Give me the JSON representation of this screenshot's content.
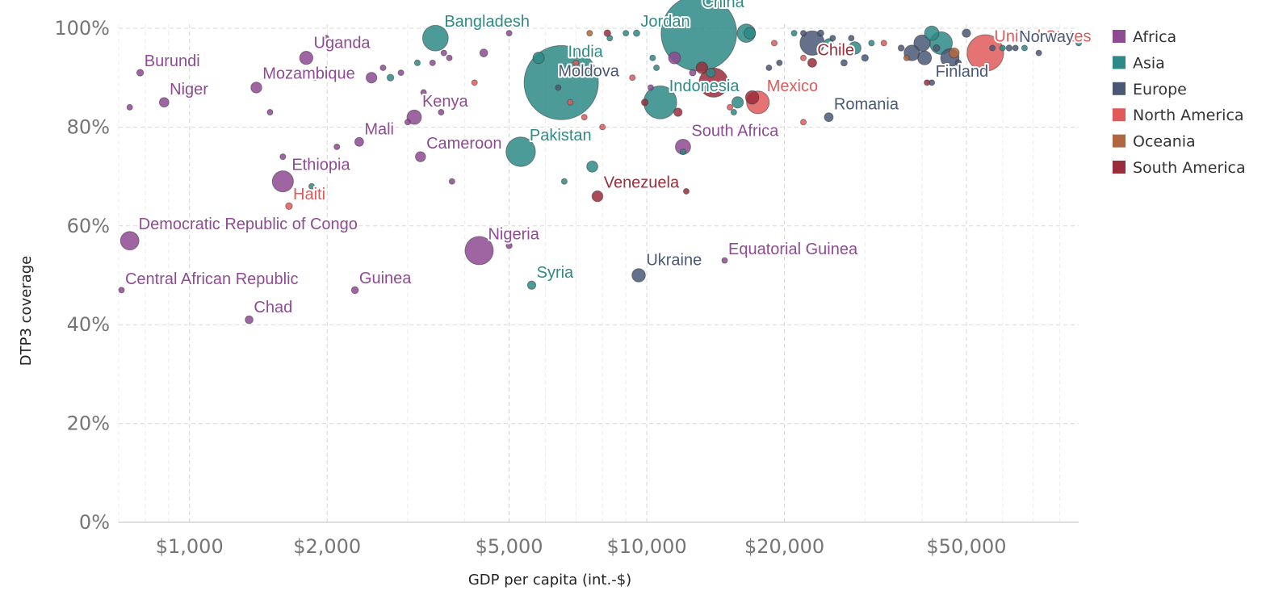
{
  "chart_data": {
    "type": "scatter",
    "xlabel": "GDP per capita (int.-$)",
    "ylabel": "DTP3 coverage",
    "xscale": "log",
    "xlim": [
      700,
      88000
    ],
    "ylim": [
      0,
      100
    ],
    "x_ticks": [
      {
        "value": 1000,
        "label": "$1,000"
      },
      {
        "value": 2000,
        "label": "$2,000"
      },
      {
        "value": 5000,
        "label": "$5,000"
      },
      {
        "value": 10000,
        "label": "$10,000"
      },
      {
        "value": 20000,
        "label": "$20,000"
      },
      {
        "value": 50000,
        "label": "$50,000"
      }
    ],
    "y_ticks": [
      {
        "value": 0,
        "label": "0%"
      },
      {
        "value": 20,
        "label": "20%"
      },
      {
        "value": 40,
        "label": "40%"
      },
      {
        "value": 60,
        "label": "60%"
      },
      {
        "value": 80,
        "label": "80%"
      },
      {
        "value": 100,
        "label": "100%"
      }
    ],
    "legend": [
      {
        "name": "Africa",
        "color": "#8e4a93"
      },
      {
        "name": "Asia",
        "color": "#2d8a86"
      },
      {
        "name": "Europe",
        "color": "#4a5875"
      },
      {
        "name": "North America",
        "color": "#e05a5a"
      },
      {
        "name": "Oceania",
        "color": "#b0663f"
      },
      {
        "name": "South America",
        "color": "#9b2d3a"
      }
    ],
    "labeled_points": [
      {
        "name": "Burundi",
        "region": "Africa",
        "x": 780,
        "y": 91,
        "pop_m": 11
      },
      {
        "name": "Niger",
        "region": "Africa",
        "x": 880,
        "y": 85,
        "pop_m": 22
      },
      {
        "name": "Uganda",
        "region": "Africa",
        "x": 1800,
        "y": 94,
        "pop_m": 43
      },
      {
        "name": "Mozambique",
        "region": "Africa",
        "x": 1400,
        "y": 88,
        "pop_m": 29
      },
      {
        "name": "Kenya",
        "region": "Africa",
        "x": 3100,
        "y": 82,
        "pop_m": 51
      },
      {
        "name": "Mali",
        "region": "Africa",
        "x": 2350,
        "y": 77,
        "pop_m": 19
      },
      {
        "name": "Cameroon",
        "region": "Africa",
        "x": 3200,
        "y": 74,
        "pop_m": 25
      },
      {
        "name": "Ethiopia",
        "region": "Africa",
        "x": 1600,
        "y": 69,
        "pop_m": 109
      },
      {
        "name": "Haiti",
        "region": "North America",
        "x": 1650,
        "y": 64,
        "pop_m": 11
      },
      {
        "name": "Democratic Republic of Congo",
        "region": "Africa",
        "x": 740,
        "y": 57,
        "pop_m": 84
      },
      {
        "name": "Nigeria",
        "region": "Africa",
        "x": 4300,
        "y": 55,
        "pop_m": 196
      },
      {
        "name": "Central African Republic",
        "region": "Africa",
        "x": 710,
        "y": 47,
        "pop_m": 5
      },
      {
        "name": "Guinea",
        "region": "Africa",
        "x": 2300,
        "y": 47,
        "pop_m": 12
      },
      {
        "name": "Chad",
        "region": "Africa",
        "x": 1350,
        "y": 41,
        "pop_m": 15
      },
      {
        "name": "Bangladesh",
        "region": "Asia",
        "x": 3450,
        "y": 98,
        "pop_m": 161
      },
      {
        "name": "India",
        "region": "Asia",
        "x": 6500,
        "y": 89,
        "pop_m": 1353
      },
      {
        "name": "Moldova",
        "region": "Europe",
        "x": 6400,
        "y": 88,
        "pop_m": 4
      },
      {
        "name": "Jordan",
        "region": "Asia",
        "x": 9500,
        "y": 99,
        "pop_m": 10
      },
      {
        "name": "China",
        "region": "Asia",
        "x": 13000,
        "y": 99,
        "pop_m": 1400
      },
      {
        "name": "Pakistan",
        "region": "Asia",
        "x": 5300,
        "y": 75,
        "pop_m": 212
      },
      {
        "name": "Indonesia",
        "region": "Asia",
        "x": 10700,
        "y": 85,
        "pop_m": 267
      },
      {
        "name": "Mexico",
        "region": "North America",
        "x": 17500,
        "y": 85,
        "pop_m": 126
      },
      {
        "name": "South Africa",
        "region": "Africa",
        "x": 12000,
        "y": 76,
        "pop_m": 57
      },
      {
        "name": "Venezuela",
        "region": "South America",
        "x": 7800,
        "y": 66,
        "pop_m": 29
      },
      {
        "name": "Syria",
        "region": "Asia",
        "x": 5600,
        "y": 48,
        "pop_m": 17
      },
      {
        "name": "Ukraine",
        "region": "Europe",
        "x": 9600,
        "y": 50,
        "pop_m": 44
      },
      {
        "name": "Equatorial Guinea",
        "region": "Africa",
        "x": 14800,
        "y": 53,
        "pop_m": 1.3
      },
      {
        "name": "Chile",
        "region": "South America",
        "x": 23000,
        "y": 93,
        "pop_m": 19
      },
      {
        "name": "Romania",
        "region": "Europe",
        "x": 25000,
        "y": 82,
        "pop_m": 19
      },
      {
        "name": "United States",
        "region": "North America",
        "x": 55000,
        "y": 95,
        "pop_m": 327
      },
      {
        "name": "Finland",
        "region": "Europe",
        "x": 42000,
        "y": 89,
        "pop_m": 5.5
      },
      {
        "name": "Norway",
        "region": "Europe",
        "x": 64000,
        "y": 96,
        "pop_m": 5.3
      }
    ],
    "points": [
      {
        "region": "Africa",
        "x": 740,
        "y": 84,
        "pop_m": 3
      },
      {
        "region": "Africa",
        "x": 1030,
        "y": 88,
        "pop_m": 1
      },
      {
        "region": "Africa",
        "x": 1500,
        "y": 83,
        "pop_m": 3
      },
      {
        "region": "Africa",
        "x": 1600,
        "y": 74,
        "pop_m": 7
      },
      {
        "region": "Asia",
        "x": 1850,
        "y": 68,
        "pop_m": 8
      },
      {
        "region": "Africa",
        "x": 1880,
        "y": 90,
        "pop_m": 2
      },
      {
        "region": "Africa",
        "x": 1990,
        "y": 98,
        "pop_m": 2
      },
      {
        "region": "Africa",
        "x": 2100,
        "y": 76,
        "pop_m": 3
      },
      {
        "region": "Africa",
        "x": 2500,
        "y": 90,
        "pop_m": 28
      },
      {
        "region": "Africa",
        "x": 2650,
        "y": 92,
        "pop_m": 2
      },
      {
        "region": "Asia",
        "x": 2750,
        "y": 90,
        "pop_m": 11
      },
      {
        "region": "Africa",
        "x": 2900,
        "y": 91,
        "pop_m": 1
      },
      {
        "region": "Africa",
        "x": 3000,
        "y": 81,
        "pop_m": 1
      },
      {
        "region": "Asia",
        "x": 3150,
        "y": 93,
        "pop_m": 8
      },
      {
        "region": "Africa",
        "x": 3250,
        "y": 87,
        "pop_m": 1
      },
      {
        "region": "Africa",
        "x": 3400,
        "y": 93,
        "pop_m": 3
      },
      {
        "region": "Africa",
        "x": 3550,
        "y": 83,
        "pop_m": 2
      },
      {
        "region": "Africa",
        "x": 3600,
        "y": 95,
        "pop_m": 1
      },
      {
        "region": "Africa",
        "x": 3700,
        "y": 94,
        "pop_m": 7
      },
      {
        "region": "Africa",
        "x": 3750,
        "y": 69,
        "pop_m": 2
      },
      {
        "region": "North America",
        "x": 4200,
        "y": 89,
        "pop_m": 3
      },
      {
        "region": "Africa",
        "x": 4400,
        "y": 95,
        "pop_m": 15
      },
      {
        "region": "Africa",
        "x": 5000,
        "y": 56,
        "pop_m": 9
      },
      {
        "region": "Africa",
        "x": 5000,
        "y": 99,
        "pop_m": 6
      },
      {
        "region": "Asia",
        "x": 5800,
        "y": 94,
        "pop_m": 32
      },
      {
        "region": "Asia",
        "x": 6600,
        "y": 69,
        "pop_m": 3
      },
      {
        "region": "North America",
        "x": 6800,
        "y": 85,
        "pop_m": 3
      },
      {
        "region": "North America",
        "x": 7000,
        "y": 93,
        "pop_m": 2
      },
      {
        "region": "Oceania",
        "x": 7500,
        "y": 99,
        "pop_m": 1
      },
      {
        "region": "North America",
        "x": 7300,
        "y": 82,
        "pop_m": 4
      },
      {
        "region": "Asia",
        "x": 7600,
        "y": 72,
        "pop_m": 30
      },
      {
        "region": "North America",
        "x": 8000,
        "y": 80,
        "pop_m": 1
      },
      {
        "region": "Asia",
        "x": 8300,
        "y": 98,
        "pop_m": 3
      },
      {
        "region": "South America",
        "x": 8200,
        "y": 99,
        "pop_m": 11
      },
      {
        "region": "Asia",
        "x": 9000,
        "y": 99,
        "pop_m": 3
      },
      {
        "region": "North America",
        "x": 9300,
        "y": 90,
        "pop_m": 2
      },
      {
        "region": "South America",
        "x": 9900,
        "y": 85,
        "pop_m": 11
      },
      {
        "region": "Asia",
        "x": 10300,
        "y": 94,
        "pop_m": 3
      },
      {
        "region": "Asia",
        "x": 10500,
        "y": 92,
        "pop_m": 2
      },
      {
        "region": "Africa",
        "x": 10200,
        "y": 88,
        "pop_m": 1
      },
      {
        "region": "Africa",
        "x": 11500,
        "y": 94,
        "pop_m": 35
      },
      {
        "region": "South America",
        "x": 11700,
        "y": 83,
        "pop_m": 17
      },
      {
        "region": "Asia",
        "x": 12000,
        "y": 75,
        "pop_m": 6
      },
      {
        "region": "South America",
        "x": 12200,
        "y": 67,
        "pop_m": 2
      },
      {
        "region": "Africa",
        "x": 12600,
        "y": 91,
        "pop_m": 10
      },
      {
        "region": "South America",
        "x": 13200,
        "y": 92,
        "pop_m": 33
      },
      {
        "region": "Asia",
        "x": 13800,
        "y": 91,
        "pop_m": 20
      },
      {
        "region": "South America",
        "x": 14000,
        "y": 89,
        "pop_m": 209
      },
      {
        "region": "North America",
        "x": 15200,
        "y": 84,
        "pop_m": 5
      },
      {
        "region": "Asia",
        "x": 15500,
        "y": 83,
        "pop_m": 5
      },
      {
        "region": "Asia",
        "x": 15800,
        "y": 85,
        "pop_m": 32
      },
      {
        "region": "Asia",
        "x": 16500,
        "y": 99,
        "pop_m": 82
      },
      {
        "region": "Asia",
        "x": 16800,
        "y": 99,
        "pop_m": 32
      },
      {
        "region": "South America",
        "x": 17000,
        "y": 86,
        "pop_m": 44
      },
      {
        "region": "Europe",
        "x": 18500,
        "y": 92,
        "pop_m": 3
      },
      {
        "region": "North America",
        "x": 19000,
        "y": 97,
        "pop_m": 1
      },
      {
        "region": "Europe",
        "x": 19500,
        "y": 93,
        "pop_m": 7
      },
      {
        "region": "Asia",
        "x": 21000,
        "y": 99,
        "pop_m": 4
      },
      {
        "region": "North America",
        "x": 22000,
        "y": 81,
        "pop_m": 1
      },
      {
        "region": "Europe",
        "x": 22000,
        "y": 99,
        "pop_m": 7
      },
      {
        "region": "North America",
        "x": 22000,
        "y": 94,
        "pop_m": 1
      },
      {
        "region": "Europe",
        "x": 23000,
        "y": 97,
        "pop_m": 146
      },
      {
        "region": "Europe",
        "x": 24000,
        "y": 99,
        "pop_m": 10
      },
      {
        "region": "Asia",
        "x": 25000,
        "y": 97,
        "pop_m": 19
      },
      {
        "region": "Europe",
        "x": 25500,
        "y": 98,
        "pop_m": 4
      },
      {
        "region": "Europe",
        "x": 27000,
        "y": 93,
        "pop_m": 10
      },
      {
        "region": "Europe",
        "x": 28000,
        "y": 98,
        "pop_m": 2
      },
      {
        "region": "Asia",
        "x": 28500,
        "y": 96,
        "pop_m": 38
      },
      {
        "region": "Europe",
        "x": 30000,
        "y": 94,
        "pop_m": 11
      },
      {
        "region": "Asia",
        "x": 31000,
        "y": 97,
        "pop_m": 3
      },
      {
        "region": "North America",
        "x": 33000,
        "y": 97,
        "pop_m": 1
      },
      {
        "region": "Europe",
        "x": 36000,
        "y": 96,
        "pop_m": 9
      },
      {
        "region": "Oceania",
        "x": 37000,
        "y": 94,
        "pop_m": 5
      },
      {
        "region": "Europe",
        "x": 38000,
        "y": 95,
        "pop_m": 60
      },
      {
        "region": "Europe",
        "x": 40000,
        "y": 97,
        "pop_m": 66
      },
      {
        "region": "Europe",
        "x": 40500,
        "y": 94,
        "pop_m": 47
      },
      {
        "region": "Asia",
        "x": 42000,
        "y": 99,
        "pop_m": 51
      },
      {
        "region": "Europe",
        "x": 43000,
        "y": 96,
        "pop_m": 11
      },
      {
        "region": "Asia",
        "x": 44000,
        "y": 97,
        "pop_m": 126
      },
      {
        "region": "South America",
        "x": 41000,
        "y": 89,
        "pop_m": 2
      },
      {
        "region": "Europe",
        "x": 46000,
        "y": 94,
        "pop_m": 83
      },
      {
        "region": "Oceania",
        "x": 47000,
        "y": 95,
        "pop_m": 25
      },
      {
        "region": "Europe",
        "x": 48000,
        "y": 93,
        "pop_m": 9
      },
      {
        "region": "Europe",
        "x": 50000,
        "y": 99,
        "pop_m": 17
      },
      {
        "region": "Europe",
        "x": 57000,
        "y": 96,
        "pop_m": 5
      },
      {
        "region": "Asia",
        "x": 60000,
        "y": 96,
        "pop_m": 4
      },
      {
        "region": "Europe",
        "x": 62000,
        "y": 96,
        "pop_m": 9
      },
      {
        "region": "Asia",
        "x": 67000,
        "y": 96,
        "pop_m": 6
      },
      {
        "region": "Europe",
        "x": 72000,
        "y": 99,
        "pop_m": 5
      },
      {
        "region": "Europe",
        "x": 72000,
        "y": 95,
        "pop_m": 4
      },
      {
        "region": "Asia",
        "x": 88000,
        "y": 97,
        "pop_m": 3
      }
    ]
  }
}
